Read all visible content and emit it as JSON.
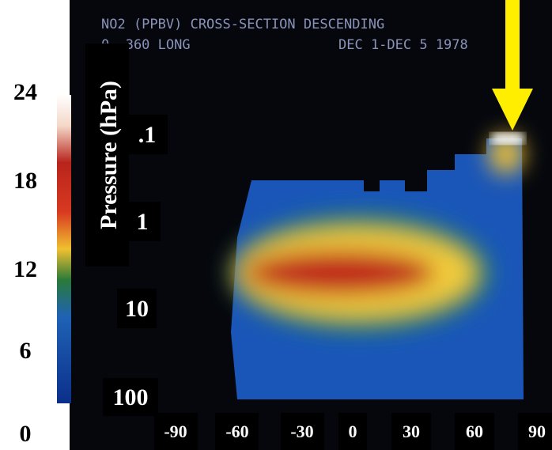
{
  "screen": {
    "title_line1": "NO2 (PPBV) CROSS-SECTION  DESCENDING",
    "title_line2_left": "0- 360 LONG",
    "title_line2_right": "DEC 1-DEC 5 1978"
  },
  "colorbar": {
    "labels": [
      "24",
      "18",
      "12",
      "6",
      "0"
    ]
  },
  "pressure_axis": {
    "label": "Pressure (hPa)",
    "ticks": [
      ".1",
      "1",
      "10",
      "100"
    ]
  },
  "x_axis": {
    "ticks": [
      "-90",
      "-60",
      "-30",
      "0",
      "30",
      "60",
      "90"
    ]
  }
}
